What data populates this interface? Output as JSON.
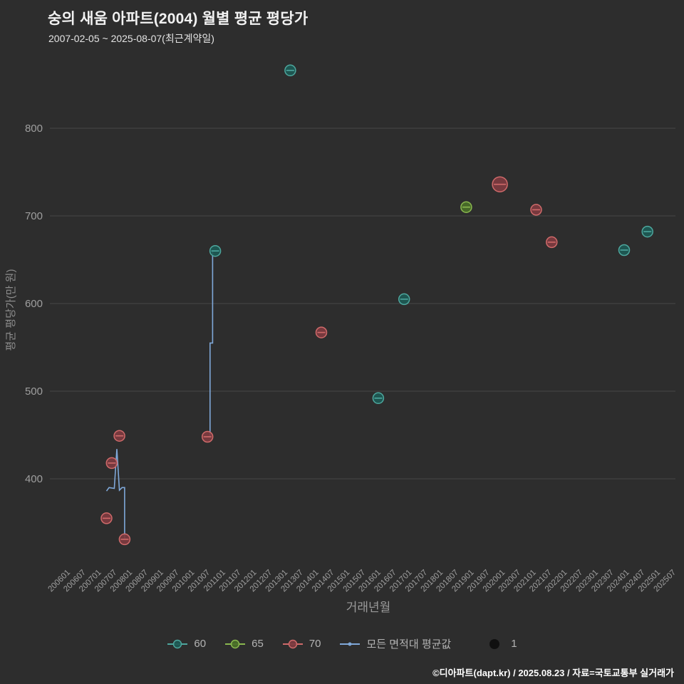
{
  "header": {
    "title": "숭의 새움 아파트(2004) 월별 평균 평당가",
    "subtitle": "2007-02-05 ~ 2025-08-07(최근계약일)"
  },
  "footer": {
    "credit": "©디아파트(dapt.kr) / 2025.08.23 / 자료=국토교통부 실거래가"
  },
  "colors": {
    "background": "#2d2d2d",
    "gridline": "#474747",
    "axis_text": "#9f9f9f",
    "legend_text": "#b3b3b3"
  },
  "chart_data": {
    "type": "scatter",
    "title": "숭의 새움 아파트(2004) 월별 평균 평당가",
    "xlabel": "거래년월",
    "ylabel": "평균 평당가(만 원)",
    "grid": "horizontal-only",
    "legend_position": "bottom-center",
    "y_ticks": [
      400,
      500,
      600,
      700,
      800
    ],
    "ylim": [
      310,
      880
    ],
    "x_ticks": [
      "200601",
      "200607",
      "200701",
      "200707",
      "200801",
      "200807",
      "200901",
      "200907",
      "201001",
      "201007",
      "201101",
      "201107",
      "201201",
      "201207",
      "201301",
      "201307",
      "201401",
      "201407",
      "201501",
      "201507",
      "201601",
      "201607",
      "201701",
      "201707",
      "201801",
      "201807",
      "201901",
      "201907",
      "202001",
      "202007",
      "202101",
      "202107",
      "202201",
      "202207",
      "202301",
      "202307",
      "202401",
      "202407",
      "202501",
      "202507"
    ],
    "series": [
      {
        "name": "60",
        "stroke": "#4da79e",
        "fill": "#1d5a55",
        "points": [
          {
            "x": 201303,
            "y": 866,
            "size": 1
          },
          {
            "x": 201010,
            "y": 660,
            "size": 1
          },
          {
            "x": 201611,
            "y": 605,
            "size": 1
          },
          {
            "x": 201601,
            "y": 492,
            "size": 1
          },
          {
            "x": 202312,
            "y": 661,
            "size": 1
          },
          {
            "x": 202409,
            "y": 682,
            "size": 1
          }
        ]
      },
      {
        "name": "65",
        "stroke": "#8ab84f",
        "fill": "#4a6f28",
        "points": [
          {
            "x": 201811,
            "y": 710,
            "size": 1
          }
        ]
      },
      {
        "name": "70",
        "stroke": "#cf6a6a",
        "fill": "#7e3b40",
        "points": [
          {
            "x": 200704,
            "y": 355,
            "size": 1
          },
          {
            "x": 200706,
            "y": 418,
            "size": 1
          },
          {
            "x": 200709,
            "y": 449,
            "size": 1
          },
          {
            "x": 200711,
            "y": 331,
            "size": 1
          },
          {
            "x": 201007,
            "y": 448,
            "size": 1
          },
          {
            "x": 201403,
            "y": 567,
            "size": 1
          },
          {
            "x": 201912,
            "y": 736,
            "size": 2
          },
          {
            "x": 202102,
            "y": 707,
            "size": 1
          },
          {
            "x": 202108,
            "y": 670,
            "size": 1
          }
        ]
      }
    ],
    "avg_line": {
      "name": "모든 면적대 평균값",
      "color": "#7fa8d9",
      "segments": [
        [
          [
            200704,
            386
          ],
          [
            200705,
            390
          ],
          [
            200707,
            389
          ],
          [
            200708,
            434
          ],
          [
            200709,
            387
          ],
          [
            200710,
            390
          ],
          [
            200711,
            390
          ],
          [
            200711,
            332
          ]
        ],
        [
          [
            201007,
            448
          ],
          [
            201008,
            448
          ],
          [
            201008,
            555
          ],
          [
            201009,
            555
          ],
          [
            201009,
            660
          ],
          [
            201010,
            660
          ]
        ]
      ]
    },
    "size_legend": {
      "label": "1",
      "color": "#101010"
    }
  }
}
